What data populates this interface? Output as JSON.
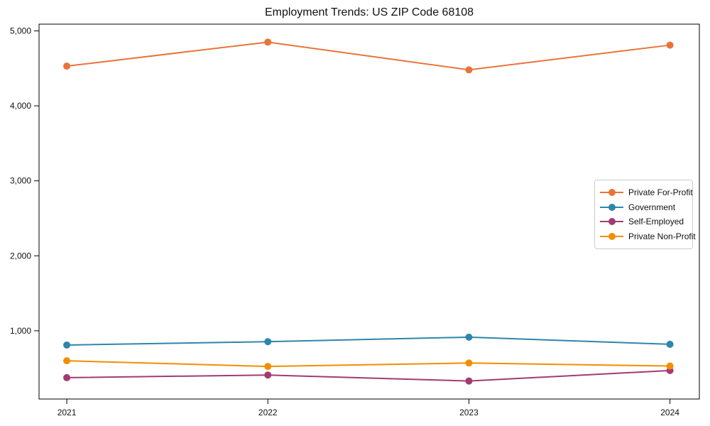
{
  "chart_data": {
    "type": "line",
    "title": "Employment Trends: US ZIP Code 68108",
    "xlabel": "",
    "ylabel": "",
    "x_tick_labels": [
      "2021",
      "2022",
      "2023",
      "2024"
    ],
    "y_ticks": [
      1000,
      2000,
      3000,
      4000,
      5000
    ],
    "y_tick_labels": [
      "1,000",
      "2,000",
      "3,000",
      "4,000",
      "5,000"
    ],
    "ylim": [
      90,
      5090
    ],
    "grid": false,
    "legend_position": "center right",
    "series": [
      {
        "name": "Private For-Profit",
        "color": "#E8743B",
        "values": [
          4530,
          4850,
          4480,
          4810
        ]
      },
      {
        "name": "Government",
        "color": "#2E86AB",
        "values": [
          810,
          855,
          915,
          820
        ]
      },
      {
        "name": "Self-Employed",
        "color": "#A23B72",
        "values": [
          375,
          410,
          330,
          470
        ]
      },
      {
        "name": "Private Non-Profit",
        "color": "#F18F01",
        "values": [
          600,
          525,
          570,
          530
        ]
      }
    ],
    "axis_color": "#000000",
    "tick_label_color": "#111111"
  }
}
